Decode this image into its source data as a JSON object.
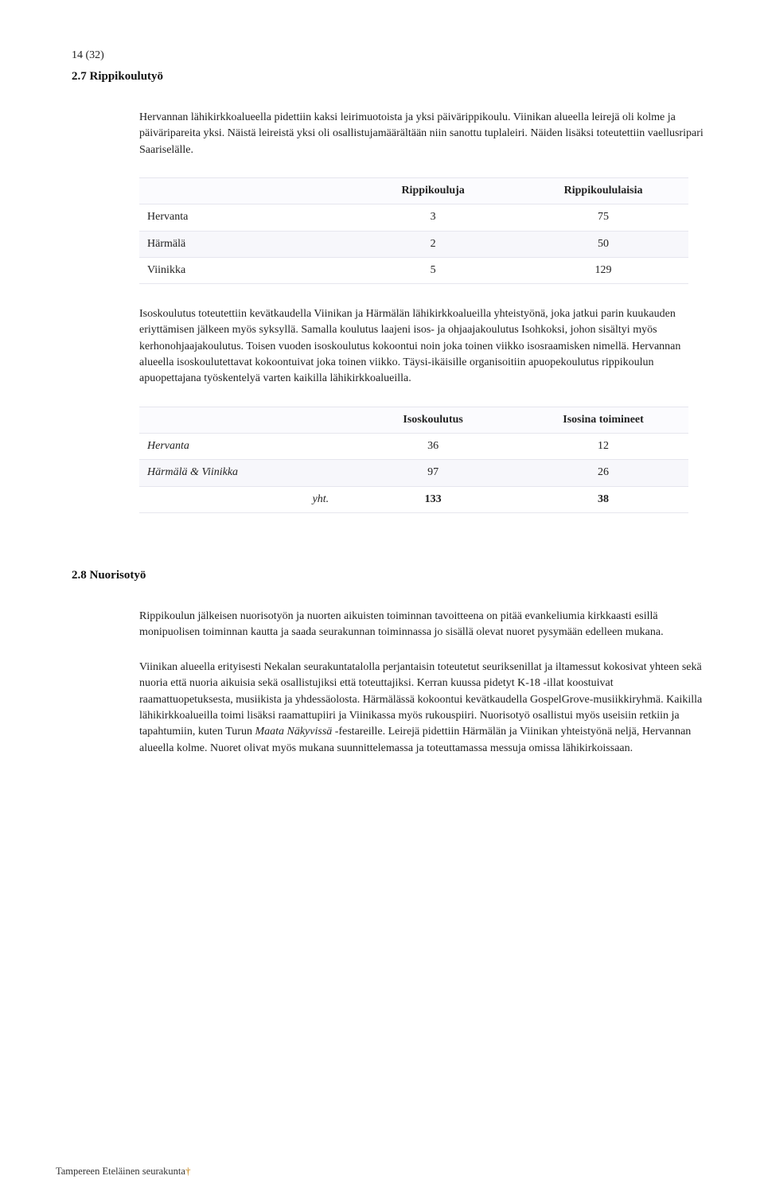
{
  "page_number_label": "14 (32)",
  "section1": {
    "title": "2.7 Rippikoulutyö",
    "para1": "Hervannan lähikirkkoalueella pidettiin kaksi leirimuotoista ja yksi päivärippikoulu. Viinikan alueella leirejä oli kolme ja päiväripareita yksi. Näistä leireistä yksi oli osallistujamäärältään niin sanottu tuplaleiri. Näiden lisäksi toteutettiin vaellusripari Saariselälle.",
    "table1": {
      "columns": [
        "",
        "Rippikouluja",
        "Rippikoululaisia"
      ],
      "rows": [
        {
          "label": "Hervanta",
          "a": "3",
          "b": "75"
        },
        {
          "label": "Härmälä",
          "a": "2",
          "b": "50"
        },
        {
          "label": "Viinikka",
          "a": "5",
          "b": "129"
        }
      ]
    },
    "para2": "Isoskoulutus toteutettiin kevätkaudella Viinikan ja Härmälän lähikirkkoalueilla yhteistyönä, joka jatkui parin kuukauden eriyttämisen jälkeen myös syksyllä. Samalla koulutus laajeni isos- ja ohjaajakoulutus Isohkoksi, johon sisältyi myös kerhonohjaajakoulutus. Toisen vuoden isoskoulutus kokoontui noin joka toinen viikko isosraamisken nimellä. Hervannan alueella isoskoulutettavat kokoontuivat joka toinen viikko. Täysi-ikäisille organisoitiin apuopekoulutus rippikoulun apuopettajana työskentelyä varten kaikilla lähikirkkoalueilla.",
    "table2": {
      "columns": [
        "",
        "Isoskoulutus",
        "Isosina toimineet"
      ],
      "rows": [
        {
          "label": "Hervanta",
          "a": "36",
          "b": "12",
          "italic": true
        },
        {
          "label": "Härmälä & Viinikka",
          "a": "97",
          "b": "26",
          "italic": true
        }
      ],
      "total": {
        "label": "yht.",
        "a": "133",
        "b": "38"
      }
    }
  },
  "section2": {
    "title": "2.8 Nuorisotyö",
    "para1": "Rippikoulun jälkeisen nuorisotyön ja nuorten aikuisten toiminnan tavoitteena on pitää evankeliumia kirkkaasti esillä monipuolisen toiminnan kautta ja saada seurakunnan toiminnassa jo sisällä olevat nuoret pysymään edelleen mukana.",
    "para2_pre": "Viinikan alueella erityisesti Nekalan seurakuntatalolla perjantaisin toteutetut seuriksenillat ja iltamessut kokosivat yhteen sekä nuoria että nuoria aikuisia sekä osallistujiksi että toteuttajiksi. Kerran kuussa pidetyt K-18 -illat koostuivat raamattuopetuksesta, musiikista ja yhdessäolosta. Härmälässä kokoontui kevätkaudella GospelGrove-musiikkiryhmä. Kaikilla lähikirkkoalueilla toimi lisäksi raamattupiiri ja Viinikassa myös rukouspiiri. Nuorisotyö osallistui myös useisiin retkiin ja tapahtumiin, kuten Turun ",
    "para2_italic": "Maata Näkyvissä",
    "para2_post": " -festareille. Leirejä pidettiin Härmälän ja Viinikan yhteistyönä neljä, Hervannan alueella kolme. Nuoret olivat myös mukana suunnittelemassa ja toteuttamassa messuja omissa lähikirkoissaan."
  },
  "footer": "Tampereen Eteläinen seurakunta"
}
